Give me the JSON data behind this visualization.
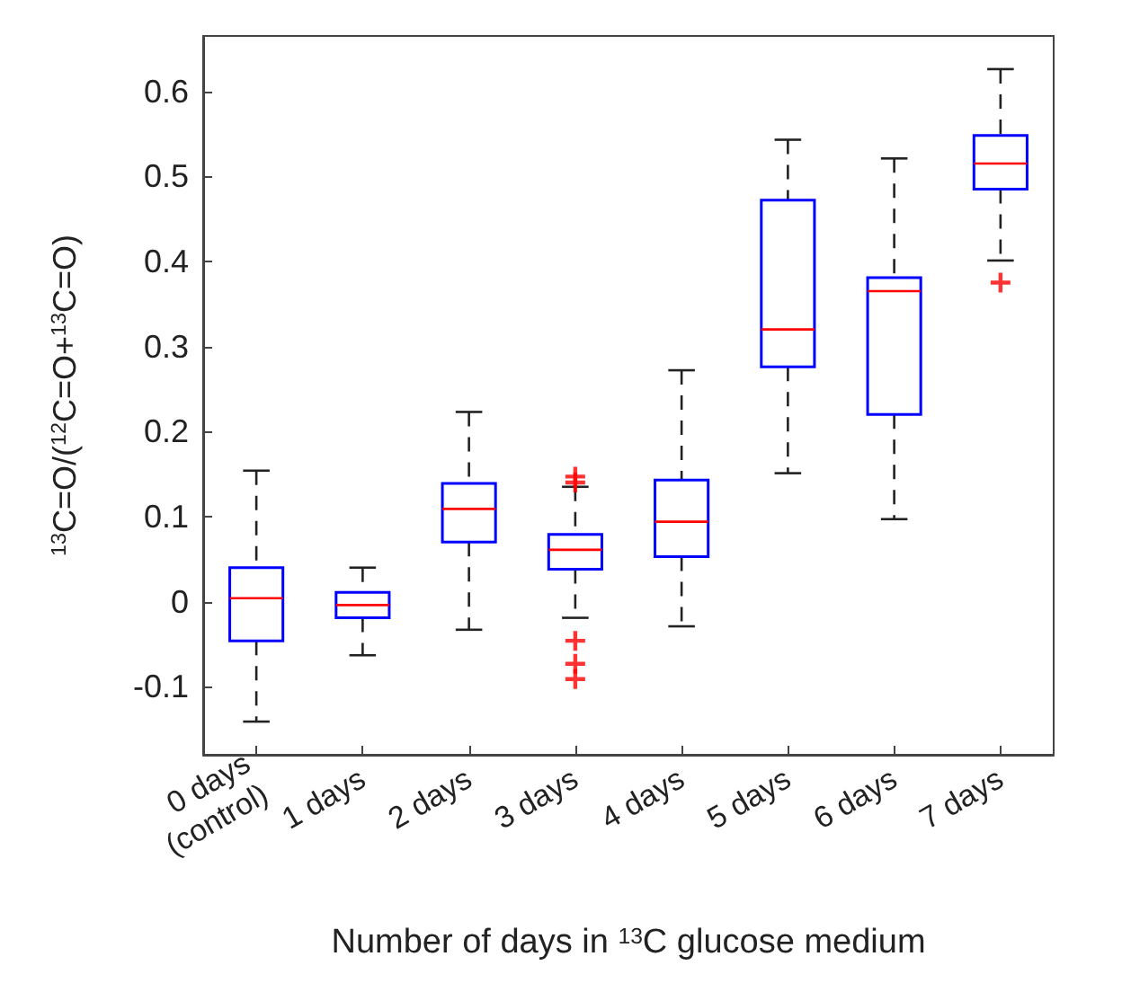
{
  "chart_data": {
    "type": "box",
    "categories": [
      "0 days\n(control)",
      "1 days",
      "2 days",
      "3 days",
      "4 days",
      "5 days",
      "6 days",
      "7 days"
    ],
    "xlabel": "Number of days in $^{13}$C glucose medium",
    "ylabel": "$^{13}$C=O/($^{12}$C=O+$^{13}$C=O)",
    "ylim": [
      -0.18,
      0.665
    ],
    "yticks": [
      -0.1,
      0,
      0.1,
      0.2,
      0.3,
      0.4,
      0.5,
      0.6
    ],
    "grid": false,
    "series": [
      {
        "color": "#0000ff",
        "boxes": [
          {
            "low": -0.141,
            "q1": -0.046,
            "median": 0.004,
            "q3": 0.04,
            "high": 0.154
          },
          {
            "low": -0.063,
            "q1": -0.019,
            "median": -0.004,
            "q3": 0.011,
            "high": 0.04
          },
          {
            "low": -0.033,
            "q1": 0.07,
            "median": 0.109,
            "q3": 0.139,
            "high": 0.223
          },
          {
            "low": -0.019,
            "q1": 0.038,
            "median": 0.061,
            "q3": 0.079,
            "high": 0.135,
            "outliers": [
              0.147,
              0.14,
              -0.046,
              -0.073,
              -0.091
            ]
          },
          {
            "low": -0.029,
            "q1": 0.053,
            "median": 0.094,
            "q3": 0.143,
            "high": 0.272
          },
          {
            "low": 0.151,
            "q1": 0.276,
            "median": 0.32,
            "q3": 0.472,
            "high": 0.543
          },
          {
            "low": 0.097,
            "q1": 0.22,
            "median": 0.365,
            "q3": 0.381,
            "high": 0.521
          },
          {
            "low": 0.401,
            "q1": 0.485,
            "median": 0.515,
            "q3": 0.548,
            "high": 0.626,
            "outliers": [
              0.375
            ]
          }
        ]
      }
    ]
  }
}
